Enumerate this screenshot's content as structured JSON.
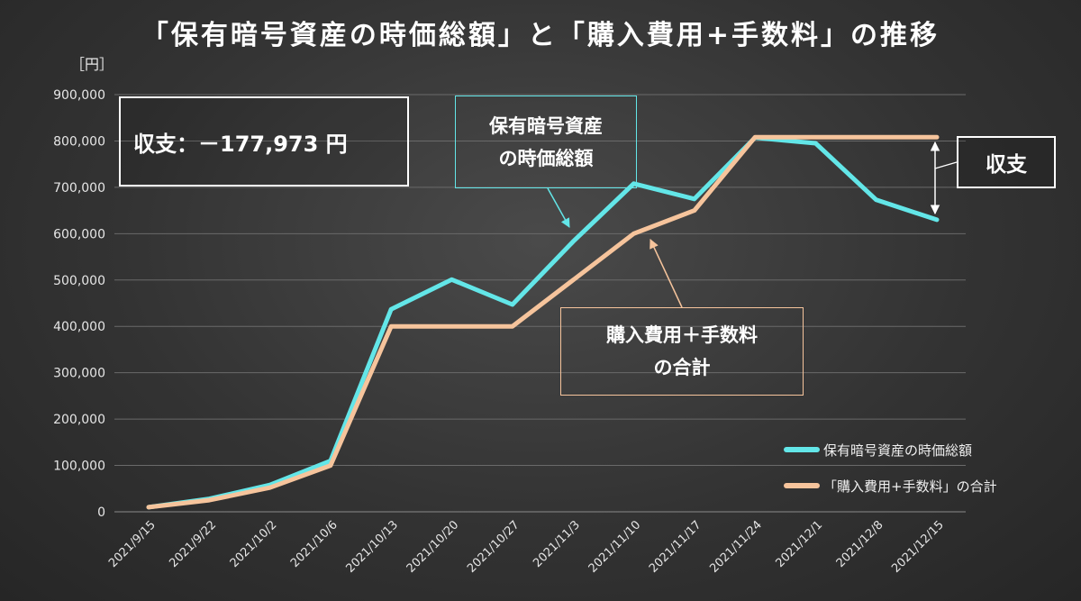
{
  "title": "「保有暗号資産の時価総額」と「購入費用+手数料」の推移",
  "y_unit": "［円］",
  "summary": {
    "label": "収支：－177,973 円"
  },
  "callouts": {
    "asset_line1": "保有暗号資産",
    "asset_line2": "の時価総額",
    "cost_line1": "購入費用＋手数料",
    "cost_line2": "の合計",
    "balance": "収支"
  },
  "colors": {
    "asset": "#63e6e8",
    "cost": "#f6c49c",
    "grid": "#6a6a6a"
  },
  "legend": [
    {
      "name": "保有暗号資産の時価総額",
      "color": "#63e6e8"
    },
    {
      "name": "「購入費用+手数料」の合計",
      "color": "#f6c49c"
    }
  ],
  "chart_data": {
    "type": "line",
    "categories": [
      "2021/9/15",
      "2021/9/22",
      "2021/10/2",
      "2021/10/6",
      "2021/10/13",
      "2021/10/20",
      "2021/10/27",
      "2021/11/3",
      "2021/11/10",
      "2021/11/17",
      "2021/11/24",
      "2021/12/1",
      "2021/12/8",
      "2021/12/15"
    ],
    "series": [
      {
        "name": "保有暗号資産の時価総額",
        "color": "#63e6e8",
        "values": [
          10000,
          28000,
          58000,
          110000,
          437000,
          501000,
          447000,
          583000,
          708000,
          675000,
          807000,
          795000,
          673000,
          630000
        ]
      },
      {
        "name": "「購入費用+手数料」の合計",
        "color": "#f6c49c",
        "values": [
          10000,
          25000,
          52000,
          100000,
          400000,
          400000,
          400000,
          500000,
          600000,
          650000,
          808000,
          808000,
          808000,
          808000
        ]
      }
    ],
    "ylim": [
      0,
      900000
    ],
    "yticks": [
      0,
      100000,
      200000,
      300000,
      400000,
      500000,
      600000,
      700000,
      800000,
      900000
    ],
    "ytick_labels": [
      "0",
      "100,000",
      "200,000",
      "300,000",
      "400,000",
      "500,000",
      "600,000",
      "700,000",
      "800,000",
      "900,000"
    ],
    "xlabel": "",
    "ylabel": "",
    "grid": true,
    "legend_position": "bottom-right"
  }
}
